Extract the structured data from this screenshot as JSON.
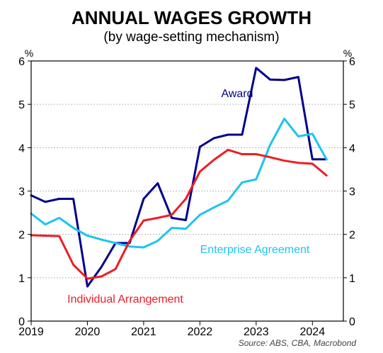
{
  "chart_data": {
    "type": "line",
    "title": "ANNUAL WAGES GROWTH",
    "subtitle": "(by wage-setting mechanism)",
    "source": "Source: ABS, CBA, Macrobond",
    "ylabel_left": "%",
    "ylabel_right": "%",
    "ylim": [
      0,
      6
    ],
    "yticks": [
      "0",
      "1",
      "2",
      "3",
      "4",
      "5",
      "6"
    ],
    "xlim": [
      2019.0,
      2024.55
    ],
    "xticks": [
      "2019",
      "2020",
      "2021",
      "2022",
      "2023",
      "2024"
    ],
    "grid": true,
    "series": [
      {
        "name": "Award",
        "color": "#00008b",
        "x": [
          2019.0,
          2019.25,
          2019.5,
          2019.75,
          2020.0,
          2020.25,
          2020.5,
          2020.75,
          2021.0,
          2021.25,
          2021.5,
          2021.75,
          2022.0,
          2022.25,
          2022.5,
          2022.75,
          2023.0,
          2023.25,
          2023.5,
          2023.75,
          2024.0,
          2024.25
        ],
        "y": [
          2.9,
          2.75,
          2.82,
          2.82,
          0.8,
          1.25,
          1.8,
          1.8,
          2.82,
          3.18,
          2.38,
          2.33,
          4.02,
          4.22,
          4.3,
          4.3,
          5.84,
          5.57,
          5.56,
          5.63,
          3.73,
          3.73
        ]
      },
      {
        "name": "Enterprise Agreement",
        "color": "#1ec3f0",
        "x": [
          2019.0,
          2019.25,
          2019.5,
          2019.75,
          2020.0,
          2020.25,
          2020.5,
          2020.75,
          2021.0,
          2021.25,
          2021.5,
          2021.75,
          2022.0,
          2022.25,
          2022.5,
          2022.75,
          2023.0,
          2023.25,
          2023.5,
          2023.75,
          2024.0,
          2024.25
        ],
        "y": [
          2.48,
          2.23,
          2.38,
          2.15,
          1.97,
          1.88,
          1.8,
          1.72,
          1.7,
          1.85,
          2.15,
          2.13,
          2.45,
          2.62,
          2.78,
          3.2,
          3.27,
          4.07,
          4.67,
          4.26,
          4.32,
          3.73
        ]
      },
      {
        "name": "Individual Arrangement",
        "color": "#ee1c25",
        "x": [
          2019.0,
          2019.25,
          2019.5,
          2019.75,
          2020.0,
          2020.25,
          2020.5,
          2020.75,
          2021.0,
          2021.25,
          2021.5,
          2021.75,
          2022.0,
          2022.25,
          2022.5,
          2022.75,
          2023.0,
          2023.25,
          2023.5,
          2023.75,
          2024.0,
          2024.25
        ],
        "y": [
          1.98,
          1.97,
          1.96,
          1.3,
          0.98,
          1.03,
          1.2,
          1.85,
          2.32,
          2.38,
          2.45,
          2.82,
          3.45,
          3.72,
          3.95,
          3.85,
          3.85,
          3.78,
          3.7,
          3.65,
          3.63,
          3.36
        ]
      }
    ],
    "annotations": [
      {
        "text": "Award",
        "series": 0
      },
      {
        "text": "Enterprise Agreement",
        "series": 1
      },
      {
        "text": "Individual Arrangement",
        "series": 2
      }
    ]
  }
}
